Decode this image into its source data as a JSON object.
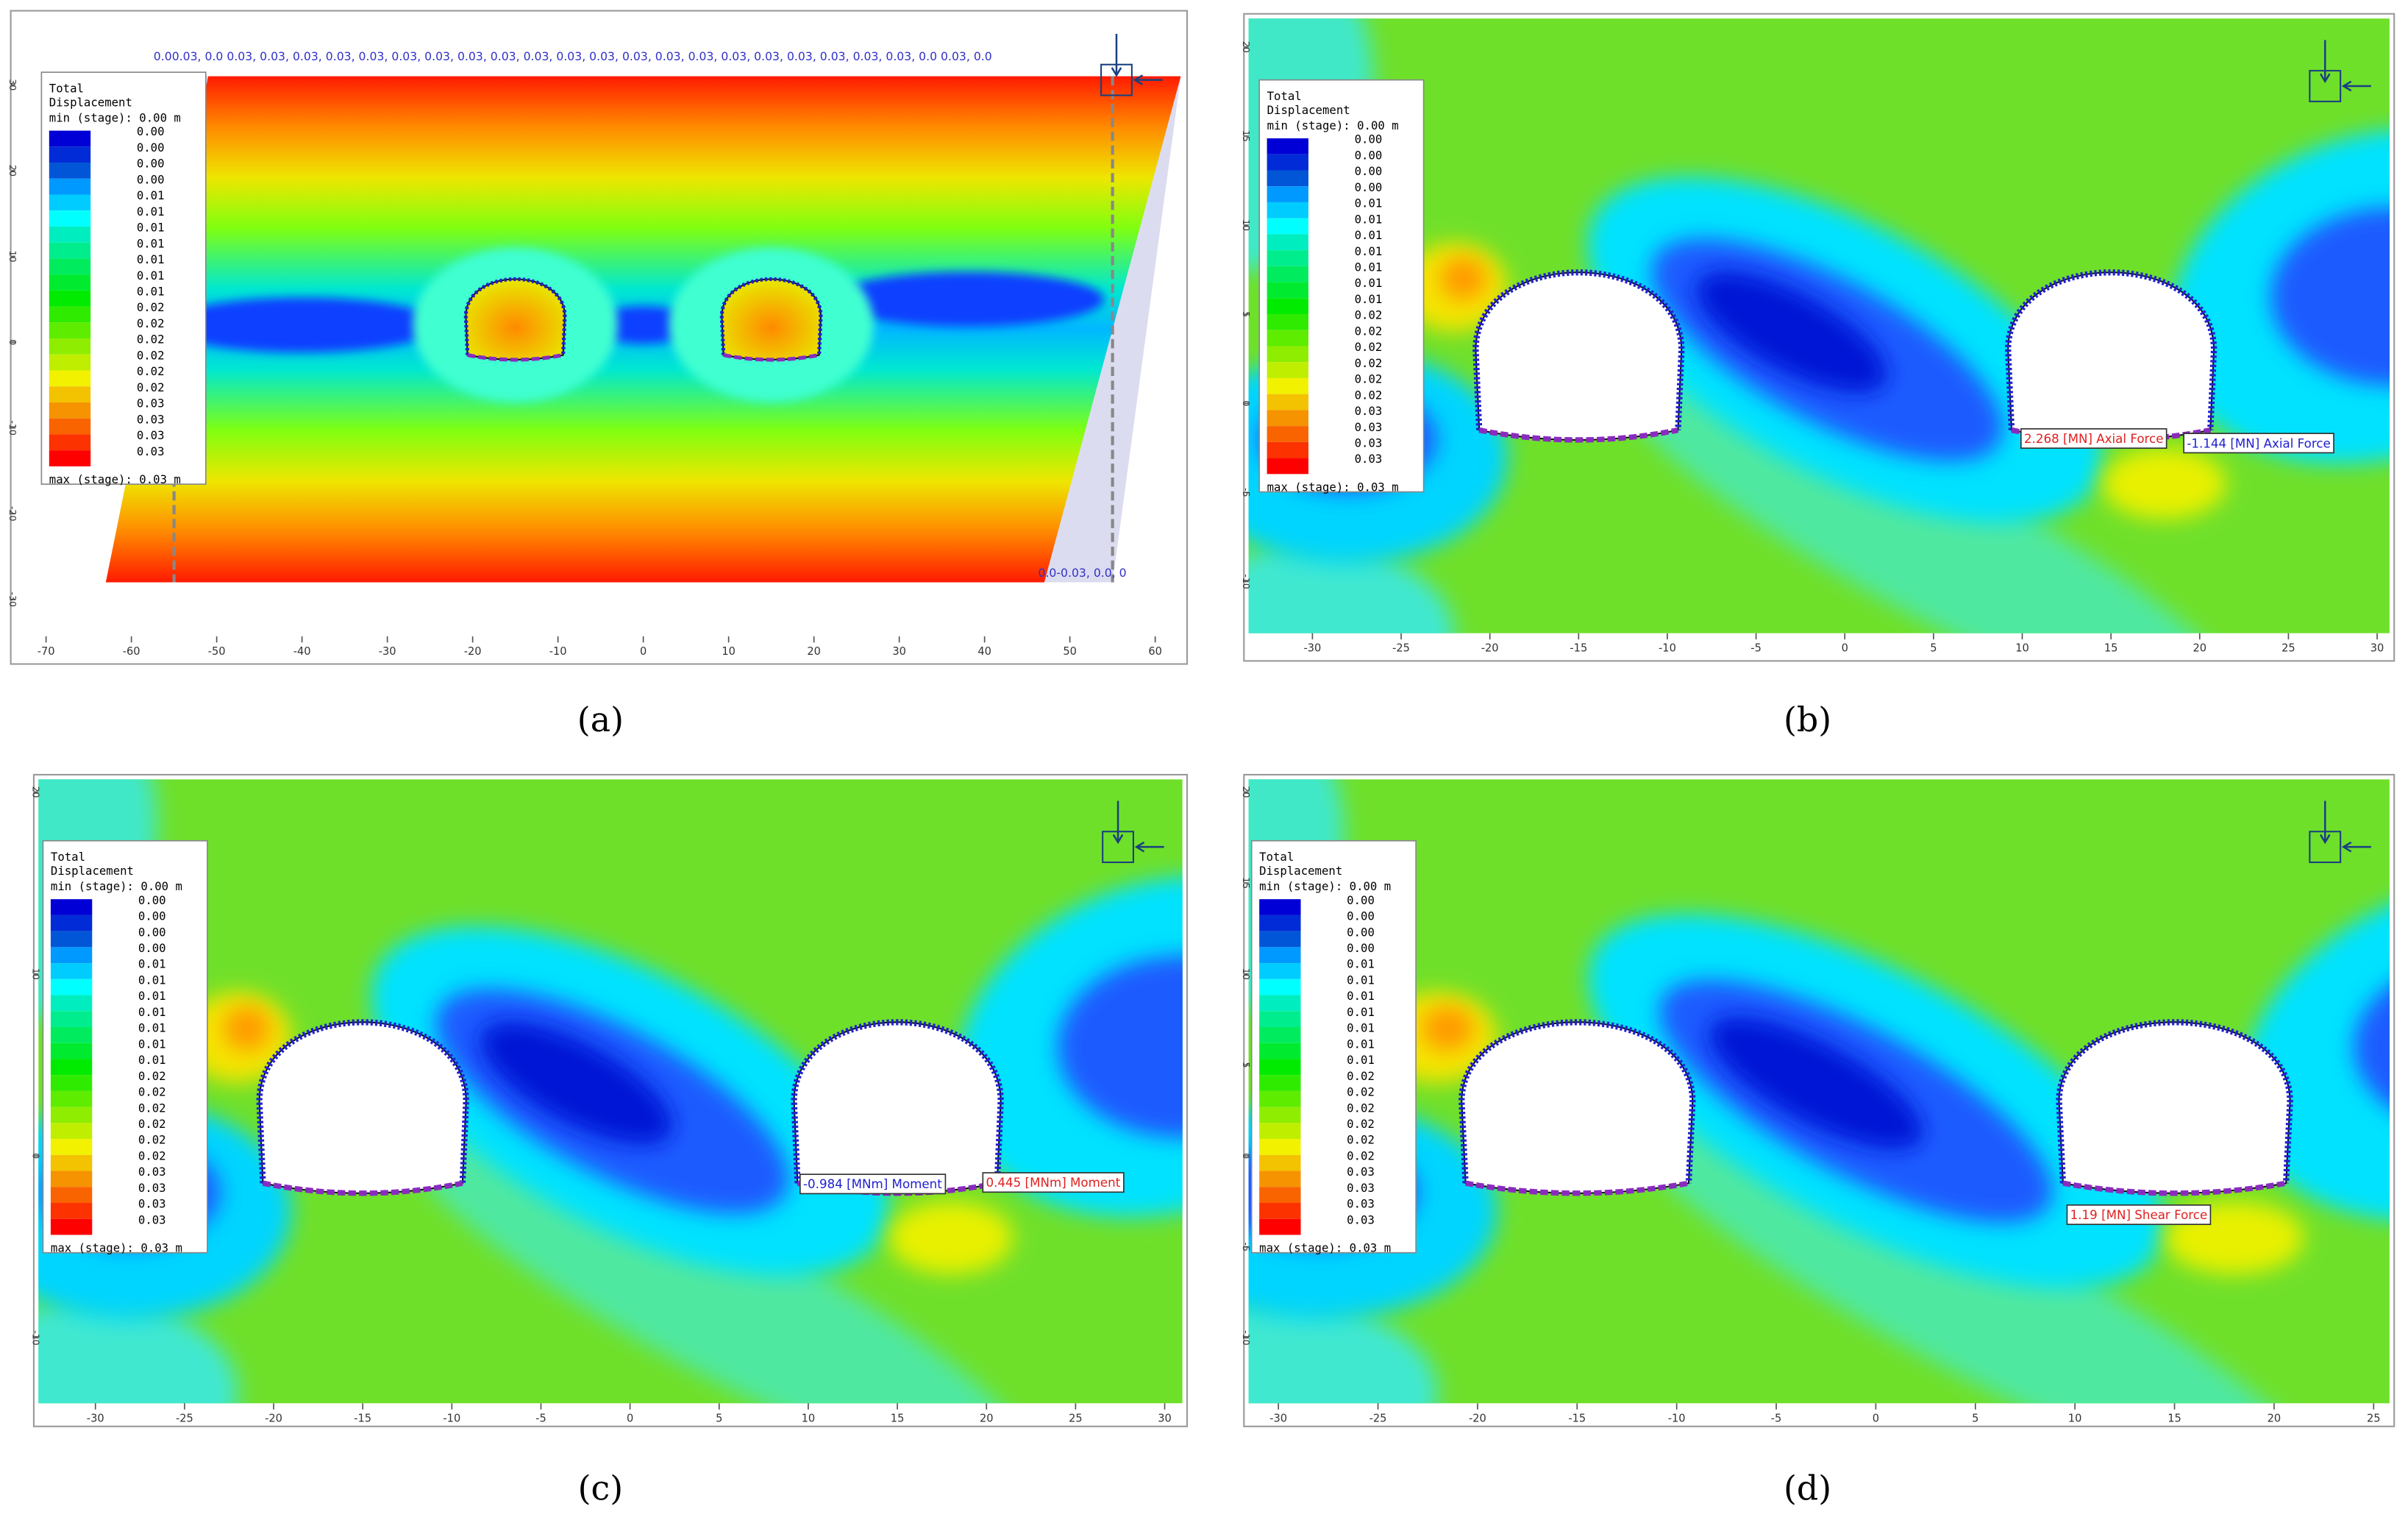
{
  "panels": [
    {
      "label": "(a)",
      "legend": {
        "title": [
          "Total",
          "Displacement"
        ],
        "min": "min (stage): 0.00 m",
        "values": [
          "0.00",
          "0.00",
          "0.00",
          "0.00",
          "0.01",
          "0.01",
          "0.01",
          "0.01",
          "0.01",
          "0.01",
          "0.01",
          "0.02",
          "0.02",
          "0.02",
          "0.02",
          "0.02",
          "0.02",
          "0.03",
          "0.03",
          "0.03",
          "0.03"
        ],
        "max": "max (stage): 0.03 m"
      },
      "xlim": [
        -73.6,
        63.2
      ],
      "ylim": [
        -34.3,
        38.1
      ],
      "xticks": [
        -70,
        -60,
        -50,
        -40,
        -30,
        -20,
        -10,
        0,
        10,
        20,
        30,
        40,
        50,
        60
      ],
      "yticks": [
        30,
        20,
        10,
        0,
        -10,
        -20,
        -30
      ],
      "annotations": [
        {
          "text": "0.00.03, 0.0 0.03, 0.03, 0.03, 0.03, 0.03, 0.03, 0.03, 0.03, 0.03, 0.03, 0.03, 0.03, 0.03, 0.03, 0.03, 0.03, 0.03, 0.03, 0.03, 0.03, 0.03, 0.0 0.03, 0.0",
          "color": "#3030c8"
        },
        {
          "text": "0.0-0.03, 0.0, 0",
          "color": "#3030c8"
        }
      ]
    },
    {
      "label": "(b)",
      "legend": {
        "title": [
          "Total",
          "Displacement"
        ],
        "min": "min (stage): 0.00 m",
        "values": [
          "0.00",
          "0.00",
          "0.00",
          "0.00",
          "0.01",
          "0.01",
          "0.01",
          "0.01",
          "0.01",
          "0.01",
          "0.01",
          "0.02",
          "0.02",
          "0.02",
          "0.02",
          "0.02",
          "0.02",
          "0.03",
          "0.03",
          "0.03",
          "0.03"
        ],
        "max": "max (stage): 0.03 m"
      },
      "xlim": [
        -33.6,
        30.7
      ],
      "ylim": [
        -12.9,
        21.6
      ],
      "xticks": [
        -30,
        -25,
        -20,
        -15,
        -10,
        -5,
        0,
        5,
        10,
        15,
        20,
        25,
        30
      ],
      "yticks": [
        20,
        15,
        10,
        5,
        0,
        -5,
        -10
      ],
      "annotations": [
        {
          "text": "2.268 [MN] Axial Force",
          "color": "#e02020"
        },
        {
          "text": "-1.144 [MN] Axial Force",
          "color": "#2020d0"
        }
      ]
    },
    {
      "label": "(c)",
      "legend": {
        "title": [
          "Total",
          "Displacement"
        ],
        "min": "min (stage): 0.00 m",
        "values": [
          "0.00",
          "0.00",
          "0.00",
          "0.00",
          "0.01",
          "0.01",
          "0.01",
          "0.01",
          "0.01",
          "0.01",
          "0.01",
          "0.02",
          "0.02",
          "0.02",
          "0.02",
          "0.02",
          "0.02",
          "0.03",
          "0.03",
          "0.03",
          "0.03"
        ],
        "max": "max (stage): 0.03 m"
      },
      "xlim": [
        -33.2,
        31.0
      ],
      "ylim": [
        -13.6,
        20.7
      ],
      "xticks": [
        -30,
        -25,
        -20,
        -15,
        -10,
        -5,
        0,
        5,
        10,
        15,
        20,
        25,
        30
      ],
      "yticks": [
        20,
        10,
        0,
        -10
      ],
      "annotations": [
        {
          "text": "-0.984 [MNm] Moment",
          "color": "#2020d0"
        },
        {
          "text": "0.445 [MNm] Moment",
          "color": "#e02020"
        }
      ]
    },
    {
      "label": "(d)",
      "legend": {
        "title": [
          "Total",
          "Displacement"
        ],
        "min": "min (stage): 0.00 m",
        "values": [
          "0.00",
          "0.00",
          "0.00",
          "0.00",
          "0.01",
          "0.01",
          "0.01",
          "0.01",
          "0.01",
          "0.01",
          "0.01",
          "0.02",
          "0.02",
          "0.02",
          "0.02",
          "0.02",
          "0.02",
          "0.03",
          "0.03",
          "0.03",
          "0.03"
        ],
        "max": "max (stage): 0.03 m"
      },
      "xlim": [
        -31.5,
        25.8
      ],
      "ylim": [
        -13.6,
        20.7
      ],
      "xticks": [
        -30,
        -25,
        -20,
        -15,
        -10,
        -5,
        0,
        5,
        10,
        15,
        20,
        25
      ],
      "yticks": [
        20,
        15,
        10,
        5,
        0,
        -5,
        -10
      ],
      "annotations": [
        {
          "text": "1.19 [MN] Shear Force",
          "color": "#e02020"
        }
      ]
    }
  ]
}
